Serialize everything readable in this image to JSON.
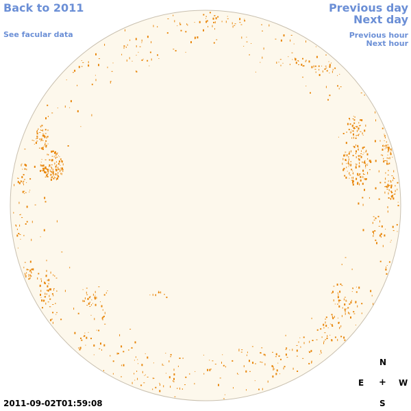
{
  "nav": {
    "back_label": "Back to 2011",
    "facular_label": "See facular data",
    "prev_day_label": "Previous day",
    "next_day_label": "Next day",
    "prev_hour_label": "Previous hour",
    "next_hour_label": "Next hour"
  },
  "timestamp": "2011-09-02T01:59:08",
  "compass": {
    "north": "N",
    "east": "E",
    "center": "+",
    "west": "W",
    "south": "S"
  },
  "colors": {
    "link": "#6b8fd6",
    "disk_fill": "#fdf8ec",
    "disk_edge": "#c8bfae",
    "facula": "#e8860a"
  }
}
